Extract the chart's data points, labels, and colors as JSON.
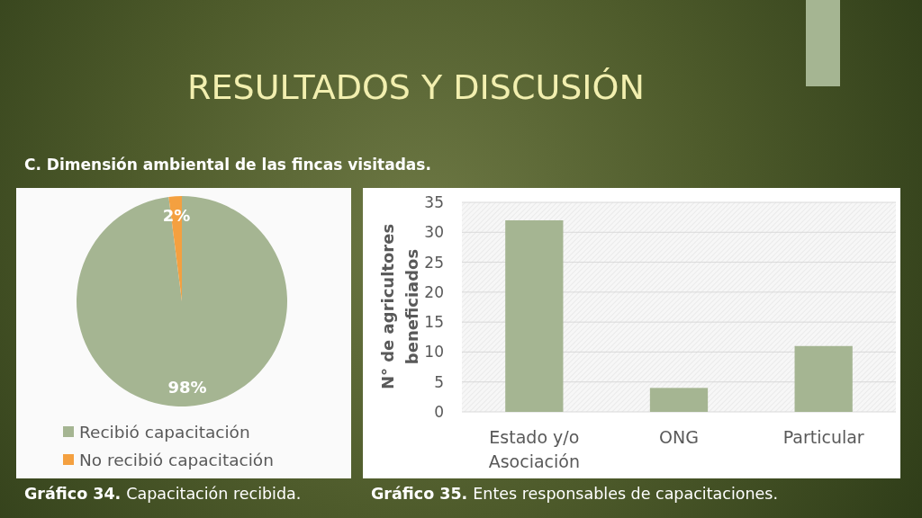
{
  "chart_data": [
    {
      "type": "pie",
      "title": "RESULTADOS Y DISCUSIÓN",
      "subtitle": "C. Dimensión ambiental de las fincas visitadas.",
      "categories": [
        "Recibió capacitación",
        "No recibió capacitación"
      ],
      "values": [
        98,
        2
      ],
      "colors": [
        "#a5b592",
        "#f4a040"
      ],
      "value_labels": [
        "98%",
        "2%"
      ],
      "legend": "bottom",
      "annotations": [
        "Gráfico 34.",
        "Capacitación recibida."
      ]
    },
    {
      "type": "bar",
      "categories": [
        "Estado y/o Asociación",
        "ONG",
        "Particular"
      ],
      "values": [
        32,
        4,
        11
      ],
      "color": "#a5b592",
      "ylabel": "N° de agricultores beneficiados",
      "ylim": [
        0,
        35
      ],
      "yticks": [
        0,
        5,
        10,
        15,
        20,
        25,
        30,
        35
      ],
      "grid": "y",
      "annotations": [
        "Gráfico 35.",
        "Entes responsables de capacitaciones."
      ]
    }
  ]
}
